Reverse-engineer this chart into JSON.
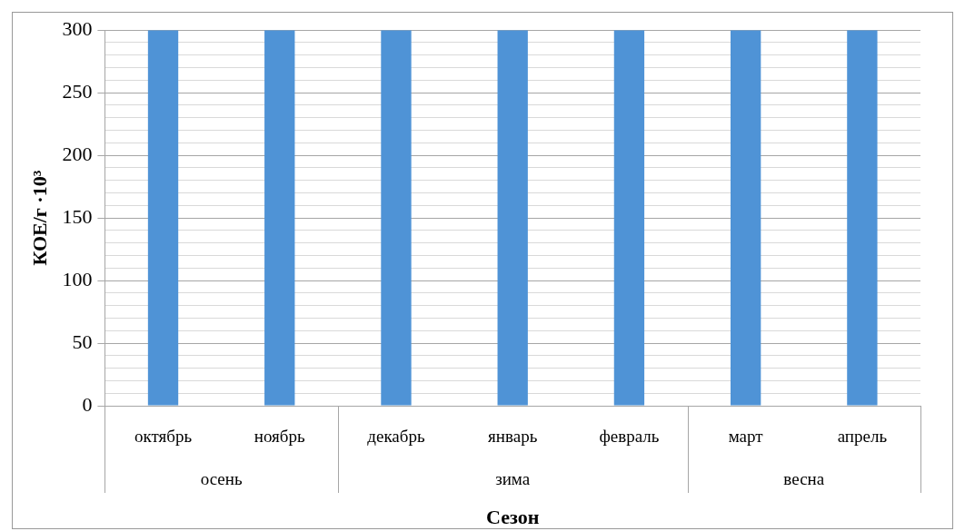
{
  "chart_data": {
    "type": "bar",
    "xlabel": "Сезон",
    "ylabel": "КОЕ/г ·10³",
    "categories": [
      "октябрь",
      "ноябрь",
      "декабрь",
      "январь",
      "февраль",
      "март",
      "апрель"
    ],
    "values": [
      300,
      300,
      300,
      300,
      300,
      300,
      300
    ],
    "color": "#4f93d6",
    "ylim": [
      0,
      300
    ],
    "yticks": [
      0,
      {
        "value": 10,
        "label": null
      },
      {
        "value": 20,
        "label": null
      },
      {
        "value": 30,
        "label": null
      },
      {
        "value": 40,
        "label": null
      },
      50,
      {
        "value": 60,
        "label": null
      },
      {
        "value": 70,
        "label": null
      },
      {
        "value": 80,
        "label": null
      },
      {
        "value": 90,
        "label": null
      },
      100,
      {
        "value": 110,
        "label": null
      },
      {
        "value": 120,
        "label": null
      },
      {
        "value": 130,
        "label": null
      },
      {
        "value": 140,
        "label": null
      },
      150,
      {
        "value": 160,
        "label": null
      },
      {
        "value": 170,
        "label": null
      },
      {
        "value": 180,
        "label": null
      },
      {
        "value": 190,
        "label": null
      },
      200,
      {
        "value": 210,
        "label": null
      },
      {
        "value": 220,
        "label": null
      },
      {
        "value": 230,
        "label": null
      },
      {
        "value": 240,
        "label": null
      },
      250,
      {
        "value": 260,
        "label": null
      },
      {
        "value": 270,
        "label": null
      },
      {
        "value": 280,
        "label": null
      },
      {
        "value": 290,
        "label": null
      },
      300
    ],
    "grid": "y",
    "annotations": [
      "осень",
      "зима",
      "весна"
    ]
  }
}
